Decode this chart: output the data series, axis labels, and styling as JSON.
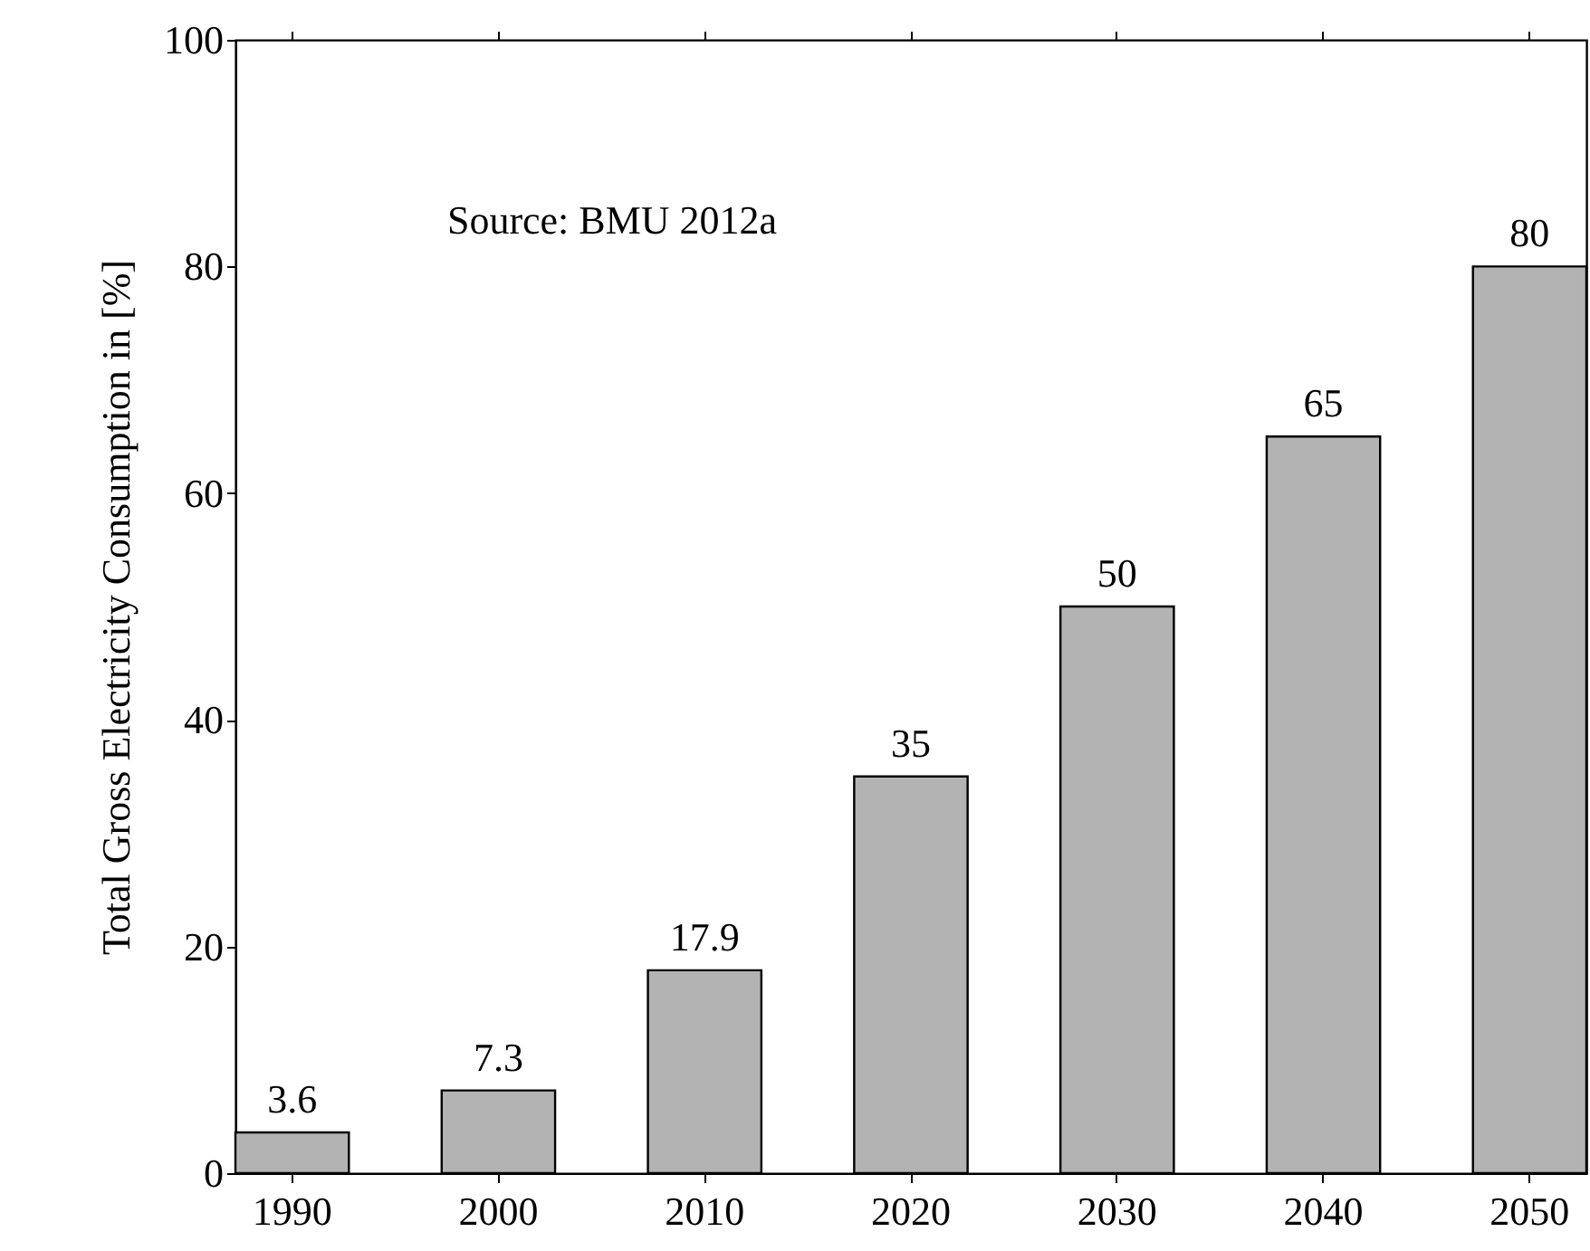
{
  "chart_data": {
    "type": "bar",
    "ylabel": "Total Gross Electricity Consumption in [%]",
    "categories": [
      "1990",
      "2000",
      "2010",
      "2020",
      "2030",
      "2040",
      "2050"
    ],
    "values": [
      3.6,
      7.3,
      17.9,
      35,
      50,
      65,
      80
    ],
    "color": "#b3b3b3",
    "ylim": [
      0,
      100
    ],
    "yticks": [
      0,
      20,
      40,
      60,
      80,
      100
    ],
    "data_labels": true,
    "grid": false,
    "annotations": [
      "Source: BMU 2012a"
    ]
  }
}
